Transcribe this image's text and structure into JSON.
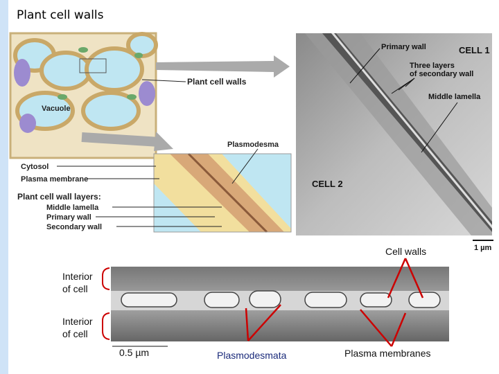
{
  "title": "Plant cell walls",
  "diagram": {
    "vacuole": "Vacuole",
    "cell_walls": "Plant cell walls",
    "plasmodesma": "Plasmodesma",
    "cytosol": "Cytosol",
    "plasma_membrane": "Plasma membrane",
    "layers_heading": "Plant cell wall layers:",
    "layers": [
      "Middle lamella",
      "Primary wall",
      "Secondary wall"
    ]
  },
  "micrograph": {
    "primary_wall": "Primary wall",
    "cell1": "CELL 1",
    "three_layers": [
      "Three layers",
      "of secondary wall"
    ],
    "middle_lamella": "Middle lamella",
    "cell2": "CELL 2",
    "scale": "1 µm"
  },
  "lower_micrograph": {
    "cell_walls": "Cell walls",
    "interior_top": [
      "Interior",
      "of cell"
    ],
    "interior_bottom": [
      "Interior",
      "of cell"
    ],
    "scale": "0.5 µm",
    "plasmodesmata": "Plasmodesmata",
    "plasma_membranes": "Plasma membranes"
  }
}
